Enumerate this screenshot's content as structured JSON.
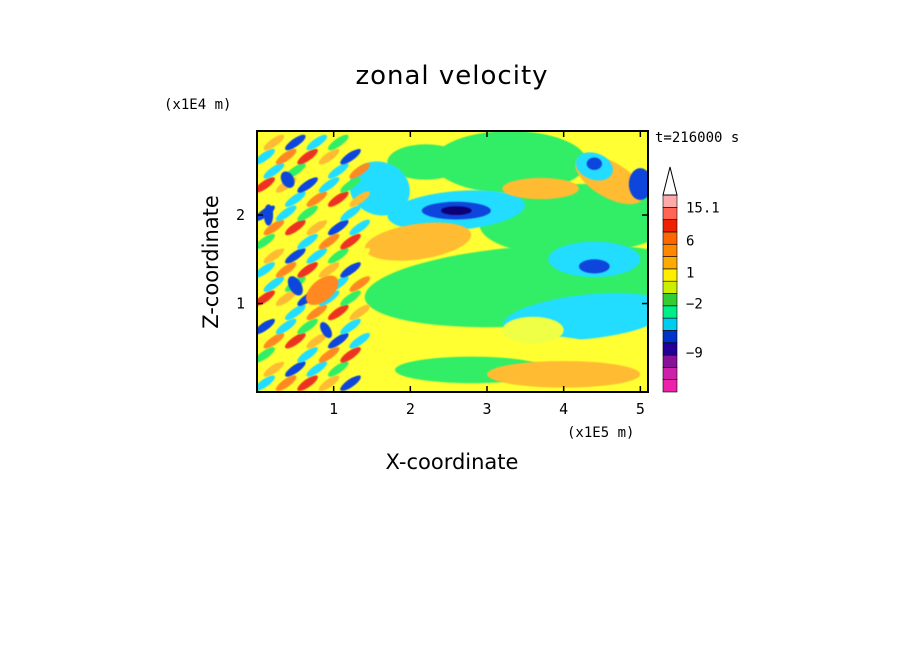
{
  "chart_data": {
    "type": "heatmap",
    "title": "zonal velocity",
    "xlabel": "X-coordinate",
    "ylabel": "Z-coordinate",
    "x_unit": "(x1E5 m)",
    "y_unit": "(x1E4 m)",
    "time_label": "t=216000 s",
    "xlim": [
      0.0,
      5.1
    ],
    "ylim": [
      0.0,
      2.95
    ],
    "xticks": [
      1,
      2,
      3,
      4,
      5
    ],
    "yticks": [
      1,
      2
    ],
    "colorbar": {
      "levels": [
        {
          "color": "#ee22aa"
        },
        {
          "color": "#cc22aa"
        },
        {
          "color": "#881199"
        },
        {
          "color": "#220099"
        },
        {
          "color": "#0033cc"
        },
        {
          "color": "#00ccee"
        },
        {
          "color": "#00ee88"
        },
        {
          "color": "#33cc33"
        },
        {
          "color": "#ccee00"
        },
        {
          "color": "#ffee00"
        },
        {
          "color": "#ffaa00"
        },
        {
          "color": "#ff8800"
        },
        {
          "color": "#ff6600"
        },
        {
          "color": "#ee2200"
        },
        {
          "color": "#ff6655"
        },
        {
          "color": "#ffaaaa"
        },
        {
          "color": "#ffffff"
        }
      ],
      "tick_labels": [
        {
          "text": "15.1",
          "level": 15
        },
        {
          "text": "6",
          "level": 12.3
        },
        {
          "text": "1",
          "level": 9.7
        },
        {
          "text": "−2",
          "level": 7.2
        },
        {
          "text": "−9",
          "level": 3.2
        }
      ]
    },
    "palette": {
      "yellow": "#ffff33",
      "light_yellow": "#eeff44",
      "orange": "#ffbb33",
      "dark_orange": "#ff8822",
      "green": "#33ee66",
      "cyan": "#22ddff",
      "blue": "#1144dd",
      "navy": "#110077",
      "red": "#ee3322"
    }
  }
}
